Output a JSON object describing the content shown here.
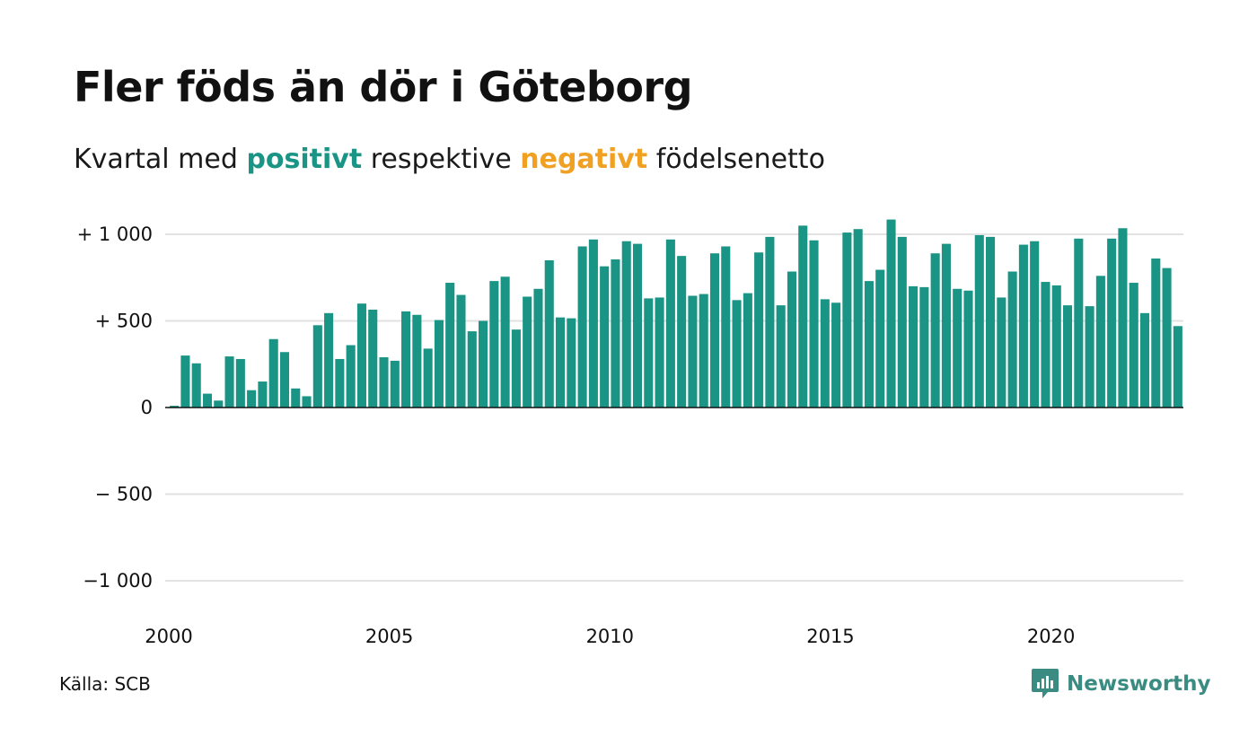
{
  "title": "Fler föds än dör i Göteborg",
  "subtitle": {
    "prefix": "Kvartal med",
    "positive_word": "positivt",
    "middle": "respektive",
    "negative_word": "negativt",
    "suffix": "födelsenetto"
  },
  "source": "Källa: SCB",
  "brand": {
    "name": "Newsworthy",
    "icon": "newsworthy-logo-icon"
  },
  "colors": {
    "positive": "#1a9485",
    "negative": "#f0a022",
    "grid": "#e2e2e2",
    "zero_line": "#111111",
    "brand": "#3a8c82"
  },
  "chart_data": {
    "type": "bar",
    "title": "Fler föds än dör i Göteborg",
    "subtitle": "Kvartal med positivt respektive negativt födelsenetto",
    "x_start": "2000 Q1",
    "x_ticks": [
      {
        "value": 2000,
        "label": "2000"
      },
      {
        "value": 2005,
        "label": "2005"
      },
      {
        "value": 2010,
        "label": "2010"
      },
      {
        "value": 2015,
        "label": "2015"
      },
      {
        "value": 2020,
        "label": "2020"
      }
    ],
    "y_ticks": [
      {
        "value": 1000,
        "label": "+ 1 000"
      },
      {
        "value": 500,
        "label": "+   500"
      },
      {
        "value": 0,
        "label": "0"
      },
      {
        "value": -500,
        "label": "−  500"
      },
      {
        "value": -1000,
        "label": "−1 000"
      }
    ],
    "ylim": [
      -1000,
      1000
    ],
    "grid": true,
    "values": [
      10,
      300,
      255,
      80,
      40,
      295,
      280,
      100,
      150,
      395,
      320,
      110,
      65,
      475,
      545,
      280,
      360,
      600,
      565,
      290,
      270,
      555,
      535,
      340,
      505,
      720,
      650,
      440,
      500,
      730,
      755,
      450,
      640,
      685,
      850,
      520,
      515,
      930,
      970,
      815,
      855,
      960,
      945,
      630,
      635,
      970,
      875,
      645,
      655,
      890,
      930,
      620,
      660,
      895,
      985,
      590,
      785,
      1050,
      965,
      625,
      605,
      1010,
      1030,
      730,
      795,
      1085,
      985,
      700,
      695,
      890,
      945,
      685,
      675,
      995,
      985,
      635,
      785,
      940,
      960,
      725,
      705,
      590,
      975,
      585,
      760,
      975,
      1035,
      720,
      545,
      860,
      805,
      470
    ]
  }
}
